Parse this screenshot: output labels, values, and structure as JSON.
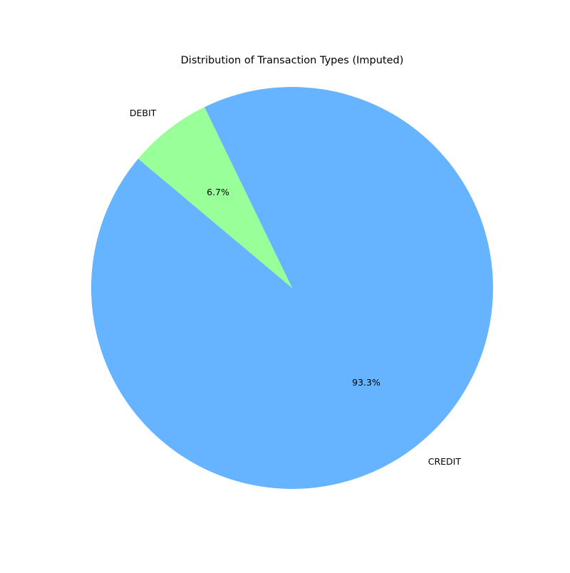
{
  "chart_data": {
    "type": "pie",
    "title": "Distribution of Transaction Types (Imputed)",
    "categories": [
      "CREDIT",
      "DEBIT"
    ],
    "values": [
      93.3,
      6.7
    ],
    "percent_labels": [
      "93.3%",
      "6.7%"
    ],
    "colors": [
      "#66b3ff",
      "#99ff99"
    ],
    "start_angle_deg": 140,
    "direction": "counterclockwise",
    "legend": "none"
  }
}
